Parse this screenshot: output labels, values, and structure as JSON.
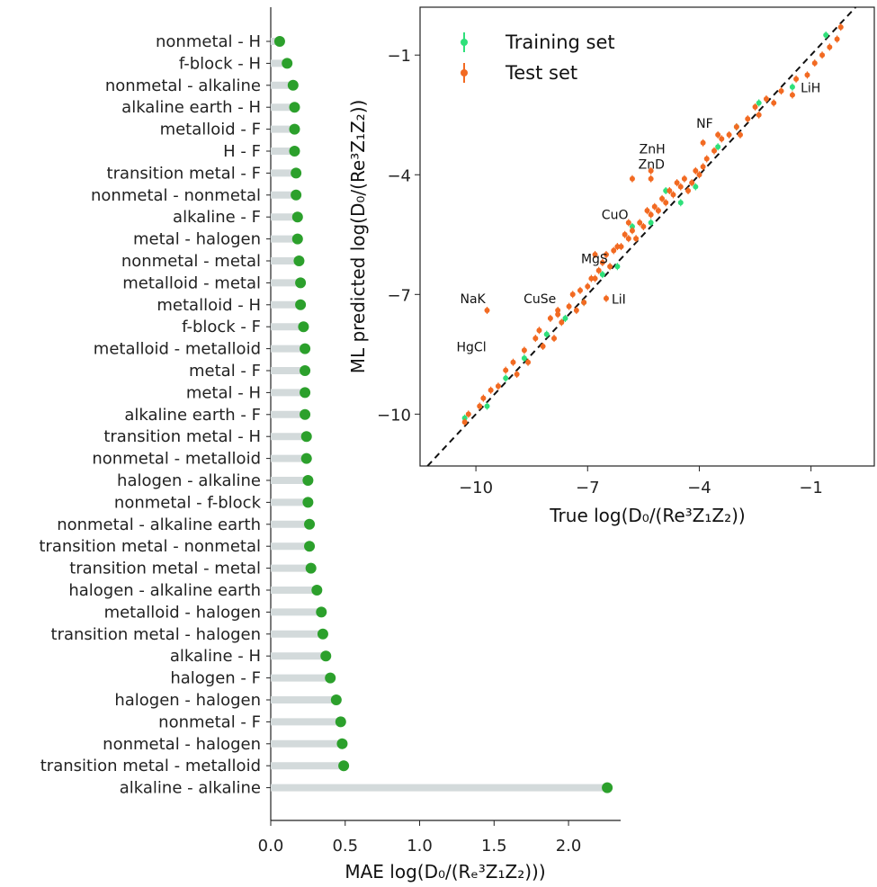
{
  "colors": {
    "lollipop_stem": "#d3dadb",
    "lollipop_dot": "#2ca02c",
    "train": "#2fe07a",
    "test": "#f26a22",
    "diagonal": "#111111"
  },
  "chart_data": [
    {
      "type": "lollipop",
      "orientation": "horizontal",
      "categories": [
        "nonmetal - H",
        "f-block - H",
        "nonmetal - alkaline",
        "alkaline earth - H",
        "metalloid - F",
        "H - F",
        "transition metal - F",
        "nonmetal - nonmetal",
        "alkaline - F",
        "metal - halogen",
        "nonmetal - metal",
        "metalloid - metal",
        "metalloid - H",
        "f-block - F",
        "metalloid - metalloid",
        "metal - F",
        "metal - H",
        "alkaline earth - F",
        "transition metal - H",
        "nonmetal - metalloid",
        "halogen - alkaline",
        "nonmetal - f-block",
        "nonmetal - alkaline earth",
        "transition metal - nonmetal",
        "transition metal - metal",
        "halogen - alkaline earth",
        "metalloid - halogen",
        "transition metal - halogen",
        "alkaline - H",
        "halogen - F",
        "halogen - halogen",
        "nonmetal - F",
        "nonmetal - halogen",
        "transition metal - metalloid",
        "alkaline - alkaline"
      ],
      "values": [
        0.06,
        0.11,
        0.15,
        0.16,
        0.16,
        0.16,
        0.17,
        0.17,
        0.18,
        0.18,
        0.19,
        0.2,
        0.2,
        0.22,
        0.23,
        0.23,
        0.23,
        0.23,
        0.24,
        0.24,
        0.25,
        0.25,
        0.26,
        0.26,
        0.27,
        0.31,
        0.34,
        0.35,
        0.37,
        0.4,
        0.44,
        0.47,
        0.48,
        0.49,
        2.26
      ],
      "xlim": [
        0.0,
        2.35
      ],
      "xticks": [
        "0.0",
        "0.5",
        "1.0",
        "1.5",
        "2.0"
      ],
      "xlabel": "MAE log(D₀/(Rₑ³Z₁Z₂)))"
    },
    {
      "type": "scatter",
      "xlim": [
        -11.5,
        0.7
      ],
      "ylim": [
        -11.3,
        0.2
      ],
      "xticks": [
        "−10",
        "−7",
        "−4",
        "−1"
      ],
      "yticks": [
        "−1",
        "−4",
        "−7",
        "−10"
      ],
      "xlabel": "True log(D₀/(Re³Z₁Z₂))",
      "ylabel": "ML predicted log(D₀/(Re³Z₁Z₂))",
      "legend": {
        "position": "top-left",
        "entries": [
          "Training set",
          "Test set"
        ]
      },
      "diagonal": true,
      "series": [
        {
          "name": "Training set",
          "x": [
            -10.3,
            -9.7,
            -9.2,
            -8.7,
            -8.1,
            -7.6,
            -7.1,
            -6.6,
            -6.2,
            -5.8,
            -5.3,
            -4.9,
            -4.5,
            -4.1,
            -3.5,
            -3.0,
            -2.4,
            -1.5,
            -0.6
          ],
          "y": [
            -10.1,
            -9.8,
            -9.1,
            -8.6,
            -8.0,
            -7.6,
            -7.2,
            -6.5,
            -6.3,
            -5.3,
            -5.2,
            -4.4,
            -4.7,
            -4.3,
            -3.3,
            -2.8,
            -2.2,
            -1.8,
            -0.5
          ]
        },
        {
          "name": "Test set",
          "x": [
            -10.3,
            -10.2,
            -9.9,
            -9.8,
            -9.6,
            -9.4,
            -9.2,
            -9.0,
            -8.9,
            -8.7,
            -8.6,
            -8.4,
            -8.3,
            -8.2,
            -8.0,
            -7.9,
            -7.8,
            -7.7,
            -7.5,
            -7.4,
            -7.3,
            -7.2,
            -7.1,
            -7.0,
            -6.9,
            -6.8,
            -6.7,
            -6.6,
            -6.5,
            -6.4,
            -6.3,
            -6.2,
            -6.1,
            -6.0,
            -5.9,
            -5.8,
            -5.7,
            -5.6,
            -5.5,
            -5.4,
            -5.3,
            -5.2,
            -5.1,
            -5.0,
            -4.9,
            -4.8,
            -4.7,
            -4.6,
            -4.5,
            -4.4,
            -4.3,
            -4.2,
            -4.1,
            -4.0,
            -3.9,
            -3.8,
            -3.6,
            -3.4,
            -3.2,
            -3.0,
            -2.9,
            -2.7,
            -2.5,
            -2.4,
            -2.2,
            -2.0,
            -1.8,
            -1.5,
            -1.4,
            -1.1,
            -0.9,
            -0.7,
            -0.5,
            -0.3,
            -0.2,
            -9.7,
            -7.8,
            -6.5,
            -5.9,
            -5.8,
            -5.3,
            -5.3,
            -3.5,
            -3.9,
            -6.8
          ],
          "y": [
            -10.2,
            -10.0,
            -9.8,
            -9.6,
            -9.4,
            -9.3,
            -8.9,
            -8.7,
            -9.0,
            -8.4,
            -8.7,
            -8.1,
            -7.9,
            -8.3,
            -7.6,
            -8.1,
            -7.5,
            -7.7,
            -7.3,
            -7.0,
            -7.4,
            -6.9,
            -7.2,
            -6.8,
            -6.6,
            -6.6,
            -6.4,
            -6.2,
            -6.0,
            -6.3,
            -5.9,
            -5.8,
            -5.8,
            -5.5,
            -5.6,
            -5.4,
            -5.6,
            -5.2,
            -5.3,
            -4.9,
            -5.0,
            -4.8,
            -4.9,
            -4.6,
            -4.7,
            -4.4,
            -4.5,
            -4.2,
            -4.3,
            -4.1,
            -4.4,
            -4.2,
            -3.9,
            -4.0,
            -3.8,
            -3.6,
            -3.4,
            -3.1,
            -3.0,
            -2.8,
            -3.0,
            -2.6,
            -2.3,
            -2.5,
            -2.1,
            -2.2,
            -1.9,
            -2.0,
            -1.6,
            -1.5,
            -1.2,
            -1.0,
            -0.8,
            -0.6,
            -0.3,
            -7.4,
            -7.4,
            -7.1,
            -5.2,
            -4.1,
            -3.9,
            -4.1,
            -3.0,
            -3.2,
            -6.0
          ]
        }
      ],
      "annotations": [
        {
          "label": "NaK",
          "x": -9.7,
          "y": -7.4
        },
        {
          "label": "HgCl",
          "x": -9.7,
          "y": -8.6
        },
        {
          "label": "CuSe",
          "x": -7.8,
          "y": -7.4
        },
        {
          "label": "LiI",
          "x": -6.5,
          "y": -7.1
        },
        {
          "label": "MgS",
          "x": -6.5,
          "y": -6.3
        },
        {
          "label": "CuO",
          "x": -5.9,
          "y": -5.2
        },
        {
          "label": "ZnD",
          "x": -5.3,
          "y": -4.0
        },
        {
          "label": "ZnH",
          "x": -5.3,
          "y": -4.0
        },
        {
          "label": "NF",
          "x": -3.5,
          "y": -3.0
        },
        {
          "label": "LiH",
          "x": -1.4,
          "y": -1.8
        }
      ]
    }
  ]
}
